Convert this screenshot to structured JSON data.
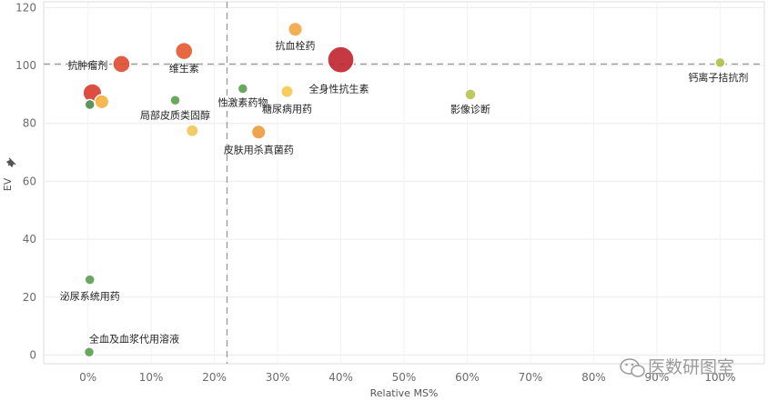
{
  "chart_data": {
    "type": "scatter",
    "subtype": "bubble",
    "xlabel": "Relative MS%",
    "ylabel": "EV",
    "xlim": [
      -7,
      107
    ],
    "ylim": [
      -3,
      122
    ],
    "xticks": [
      "0%",
      "10%",
      "20%",
      "30%",
      "40%",
      "50%",
      "60%",
      "70%",
      "80%",
      "90%",
      "100%"
    ],
    "xtick_values": [
      0,
      10,
      20,
      30,
      40,
      50,
      60,
      70,
      80,
      90,
      100
    ],
    "yticks": [
      "0",
      "20",
      "40",
      "60",
      "80",
      "100",
      "120"
    ],
    "ytick_values": [
      0,
      20,
      40,
      60,
      80,
      100,
      120
    ],
    "reference_lines": {
      "x": 22,
      "y": 100.5
    },
    "points": [
      {
        "label": "抗血栓药",
        "x": 32.8,
        "y": 112.5,
        "size": 2,
        "color": "#f2a545"
      },
      {
        "label": "维生素",
        "x": 15.2,
        "y": 105,
        "size": 3,
        "color": "#e5572f"
      },
      {
        "label": "全身性抗生素",
        "x": 40,
        "y": 102,
        "size": 7,
        "color": "#c0232f"
      },
      {
        "label": "抗肿瘤剂",
        "x": 5.3,
        "y": 100.5,
        "size": 3,
        "color": "#de4a2d"
      },
      {
        "label": "钙离子拮抗剂",
        "x": 100,
        "y": 101,
        "size": 1,
        "color": "#b3bf47"
      },
      {
        "label": "",
        "x": 0.7,
        "y": 90.5,
        "size": 3.5,
        "color": "#d83a2e"
      },
      {
        "label": "",
        "x": 2.2,
        "y": 87.5,
        "size": 2,
        "color": "#f5b13f"
      },
      {
        "label": "",
        "x": 0.3,
        "y": 86.5,
        "size": 1,
        "color": "#4b8a48"
      },
      {
        "label": "局部皮质类固醇",
        "x": 13.8,
        "y": 88,
        "size": 1,
        "color": "#5a9e4f"
      },
      {
        "label": "性激素药物",
        "x": 24.5,
        "y": 92,
        "size": 1,
        "color": "#5a9e4f"
      },
      {
        "label": "糖尿病用药",
        "x": 31.5,
        "y": 91,
        "size": 1.5,
        "color": "#f5c84f"
      },
      {
        "label": "影像诊断",
        "x": 60.5,
        "y": 90,
        "size": 1.2,
        "color": "#b7c34f"
      },
      {
        "label": "",
        "x": 16.5,
        "y": 77.5,
        "size": 1.5,
        "color": "#f0c657"
      },
      {
        "label": "皮肤用杀真菌药",
        "x": 27,
        "y": 77,
        "size": 2,
        "color": "#ef9a3d"
      },
      {
        "label": "泌尿系统用药",
        "x": 0.3,
        "y": 26,
        "size": 1,
        "color": "#5a9e4f"
      },
      {
        "label": "全血及血浆代用溶液",
        "x": 0.2,
        "y": 1,
        "size": 1,
        "color": "#5a9e4f"
      }
    ]
  },
  "watermark": {
    "text": "医数研图室"
  }
}
